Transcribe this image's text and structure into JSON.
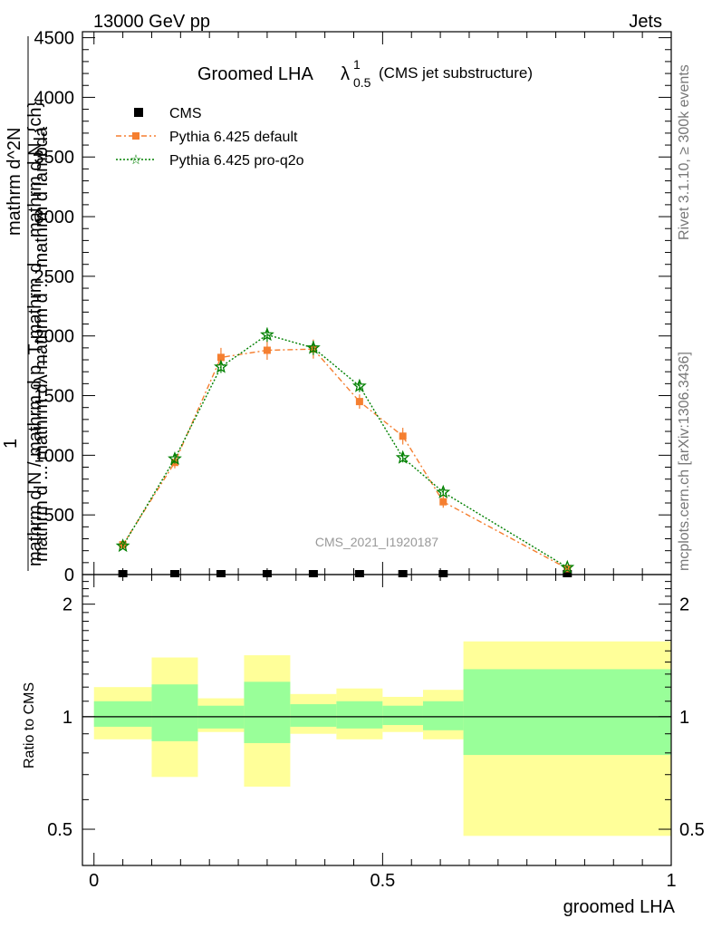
{
  "header": {
    "left": "13000 GeV pp",
    "right": "Jets"
  },
  "side_text": {
    "rivet": "Rivet 3.1.10, ≥ 300k events",
    "mcplots": "mcplots.cern.ch [arXiv:1306.3436]"
  },
  "watermark": "CMS_2021_I1920187",
  "title": {
    "main": "Groomed LHA",
    "lambda": "λ",
    "sup": "1",
    "sub": "0.5",
    "paren": "(CMS jet substructure)"
  },
  "y_label": {
    "top_num": "mathrm d^2N",
    "top_den": "mathrm d ... mathrm dλ mathrm d ... mathrm d lambda",
    "one": "1",
    "bot": "mathrm d N / mathrm d p_T  mathrm d ... mathrm d N_{ch}"
  },
  "ratio_ylabel": "Ratio to CMS",
  "x_label": "groomed LHA",
  "legend": [
    {
      "name": "CMS",
      "color": "#000000"
    },
    {
      "name": "Pythia 6.425 default",
      "color": "#f57f30"
    },
    {
      "name": "Pythia 6.425 pro-q2o",
      "color": "#008000"
    }
  ],
  "main_yticks": [
    "0",
    "500",
    "1000",
    "1500",
    "2000",
    "2500",
    "3000",
    "3500",
    "4000",
    "4500"
  ],
  "ratio_yticks": [
    "0.5",
    "1",
    "2"
  ],
  "xticks": [
    "0",
    "0.5",
    "1"
  ],
  "chart_data": {
    "type": "line",
    "xlabel": "groomed LHA",
    "ylim": [
      0,
      4550
    ],
    "xlim": [
      -0.02,
      1.0
    ],
    "series": [
      {
        "name": "CMS",
        "x": [
          0.05,
          0.14,
          0.22,
          0.3,
          0.38,
          0.46,
          0.535,
          0.605,
          0.82
        ],
        "y": [
          0,
          0,
          0,
          0,
          0,
          0,
          0,
          0,
          0
        ]
      },
      {
        "name": "Pythia 6.425 default",
        "x": [
          0.05,
          0.14,
          0.22,
          0.3,
          0.38,
          0.46,
          0.535,
          0.605,
          0.82
        ],
        "y": [
          250,
          940,
          1820,
          1880,
          1890,
          1450,
          1160,
          610,
          50
        ],
        "err": [
          20,
          50,
          80,
          80,
          80,
          60,
          70,
          50,
          10
        ]
      },
      {
        "name": "Pythia 6.425 pro-q2o",
        "x": [
          0.05,
          0.14,
          0.22,
          0.3,
          0.38,
          0.46,
          0.535,
          0.605,
          0.82
        ],
        "y": [
          240,
          970,
          1740,
          2010,
          1900,
          1580,
          980,
          690,
          60
        ],
        "err": [
          20,
          40,
          50,
          60,
          60,
          50,
          40,
          30,
          10
        ]
      }
    ],
    "ratio": {
      "ylim": [
        0.4,
        2.4
      ],
      "bands": [
        {
          "x0": 0.0,
          "x1": 0.1,
          "green": [
            0.94,
            1.1
          ],
          "yellow": [
            0.87,
            1.2
          ]
        },
        {
          "x0": 0.1,
          "x1": 0.18,
          "green": [
            0.86,
            1.22
          ],
          "yellow": [
            0.69,
            1.44
          ]
        },
        {
          "x0": 0.18,
          "x1": 0.26,
          "green": [
            0.93,
            1.07
          ],
          "yellow": [
            0.91,
            1.12
          ]
        },
        {
          "x0": 0.26,
          "x1": 0.34,
          "green": [
            0.85,
            1.24
          ],
          "yellow": [
            0.65,
            1.46
          ]
        },
        {
          "x0": 0.34,
          "x1": 0.42,
          "green": [
            0.94,
            1.08
          ],
          "yellow": [
            0.9,
            1.15
          ]
        },
        {
          "x0": 0.42,
          "x1": 0.5,
          "green": [
            0.93,
            1.1
          ],
          "yellow": [
            0.87,
            1.19
          ]
        },
        {
          "x0": 0.5,
          "x1": 0.57,
          "green": [
            0.95,
            1.07
          ],
          "yellow": [
            0.91,
            1.13
          ]
        },
        {
          "x0": 0.57,
          "x1": 0.64,
          "green": [
            0.92,
            1.1
          ],
          "yellow": [
            0.87,
            1.18
          ]
        },
        {
          "x0": 0.64,
          "x1": 1.0,
          "green": [
            0.79,
            1.34
          ],
          "yellow": [
            0.48,
            1.59
          ]
        }
      ]
    }
  }
}
